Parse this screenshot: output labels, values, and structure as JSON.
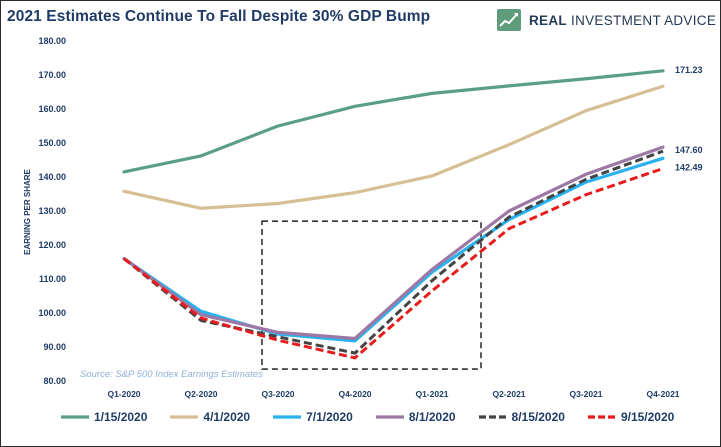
{
  "header": {
    "title": "2021 Estimates Continue To Fall Despite 30% GDP Bump",
    "brand_bold": "REAL",
    "brand_rest": "INVESTMENT ADVICE",
    "brand_icon": "line-chart-logo-icon",
    "brand_color": "#5f9c7c"
  },
  "chart_data": {
    "type": "line",
    "title": "2021 Estimates Continue To Fall Despite 30% GDP Bump",
    "xlabel": "",
    "ylabel": "EARNING PER SHARE",
    "ylim": [
      80,
      180
    ],
    "yticks": [
      "180.00",
      "170.00",
      "160.00",
      "150.00",
      "140.00",
      "130.00",
      "120.00",
      "110.00",
      "100.00",
      "90.00",
      "80.00"
    ],
    "categories": [
      "Q1-2020",
      "Q2-2020",
      "Q3-2020",
      "Q4-2020",
      "Q1-2021",
      "Q2-2021",
      "Q3-2021",
      "Q4-2021"
    ],
    "grid": false,
    "legend_position": "bottom",
    "series": [
      {
        "name": "1/15/2020",
        "color": "#5b9e86",
        "dashed": false,
        "values": [
          141.5,
          146.2,
          155.0,
          160.8,
          164.6,
          166.8,
          168.9,
          171.23
        ]
      },
      {
        "name": "4/1/2020",
        "color": "#d6bf94",
        "dashed": false,
        "values": [
          135.8,
          130.8,
          132.2,
          135.4,
          140.3,
          149.5,
          159.5,
          166.7
        ]
      },
      {
        "name": "7/1/2020",
        "color": "#2ab2ee",
        "dashed": false,
        "values": [
          116.0,
          100.5,
          93.8,
          91.8,
          112.0,
          127.5,
          138.5,
          145.5
        ]
      },
      {
        "name": "8/1/2020",
        "color": "#9d78a4",
        "dashed": false,
        "values": [
          116.0,
          99.5,
          94.3,
          92.5,
          112.8,
          130.0,
          140.8,
          148.8
        ]
      },
      {
        "name": "8/15/2020",
        "color": "#444444",
        "dashed": true,
        "values": [
          116.0,
          97.8,
          93.0,
          88.2,
          109.5,
          128.2,
          139.3,
          147.6
        ]
      },
      {
        "name": "9/15/2020",
        "color": "#e81c1c",
        "dashed": true,
        "values": [
          116.0,
          98.5,
          92.0,
          86.8,
          106.5,
          124.8,
          134.8,
          142.49
        ]
      }
    ],
    "end_labels": [
      {
        "series": "1/15/2020",
        "text": "171.23"
      },
      {
        "series": "8/15/2020",
        "text": "147.60"
      },
      {
        "series": "9/15/2020",
        "text": "142.49"
      }
    ],
    "source_note": "Source: S&P 500 Index Earnings Estimates",
    "highlight_box": {
      "x_from": "Q2-2020",
      "x_to": "Q1-2021",
      "y_from": 83.5,
      "y_to": 127
    }
  }
}
